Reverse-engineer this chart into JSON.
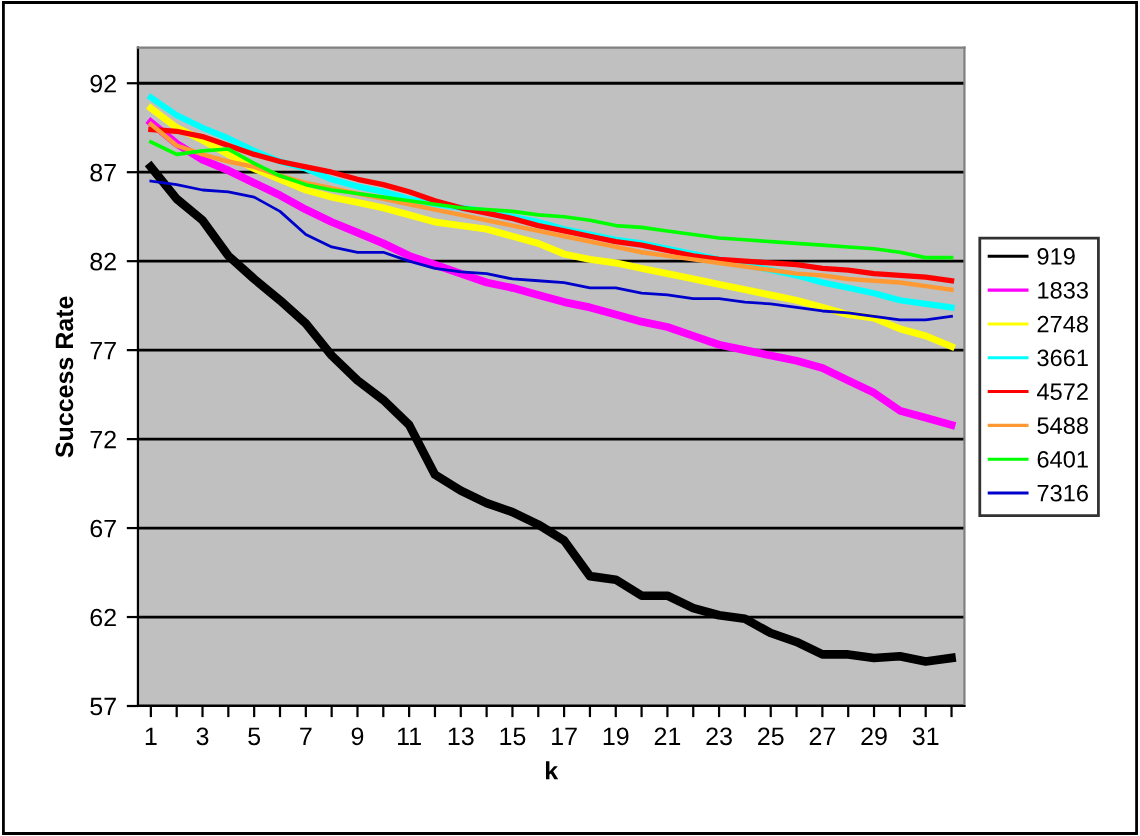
{
  "chart_data": {
    "type": "line",
    "xlabel": "k",
    "ylabel": "Success Rate",
    "categories": [
      "1",
      null,
      "3",
      null,
      "5",
      null,
      "7",
      null,
      "9",
      null,
      "11",
      null,
      "13",
      null,
      "15",
      null,
      "17",
      null,
      "19",
      null,
      "21",
      null,
      "23",
      null,
      "25",
      null,
      "27",
      null,
      "29",
      null,
      "31",
      null
    ],
    "series": [
      {
        "name": "919",
        "color": "#000000",
        "values": [
          87.3,
          85.5,
          84.3,
          82.3,
          81,
          79.8,
          78.5,
          76.7,
          75.3,
          74.2,
          72.8,
          70,
          69.1,
          68.4,
          67.9,
          67.2,
          66.3,
          64.3,
          64.1,
          63.2,
          63.2,
          62.5,
          62.1,
          61.9,
          61.1,
          60.6,
          59.9,
          59.9,
          59.7,
          59.8,
          59.5,
          59.7
        ]
      },
      {
        "name": "1833",
        "color": "#ff00ff",
        "values": [
          89.8,
          88.6,
          87.7,
          87.1,
          86.4,
          85.7,
          84.9,
          84.2,
          83.6,
          83,
          82.3,
          81.8,
          81.3,
          80.8,
          80.5,
          80.1,
          79.7,
          79.4,
          79,
          78.6,
          78.3,
          77.8,
          77.3,
          77,
          76.7,
          76.4,
          76,
          75.3,
          74.6,
          73.6,
          73.2,
          72.8
        ]
      },
      {
        "name": "2748",
        "color": "#ffff00",
        "values": [
          90.6,
          89.5,
          88.8,
          88,
          87.2,
          86.6,
          86,
          85.6,
          85.3,
          85,
          84.6,
          84.2,
          84,
          83.8,
          83.4,
          83,
          82.4,
          82.1,
          81.9,
          81.6,
          81.3,
          81,
          80.7,
          80.4,
          80.1,
          79.8,
          79.4,
          79,
          78.8,
          78.2,
          77.8,
          77.2
        ]
      },
      {
        "name": "3661",
        "color": "#00ffff",
        "values": [
          91.2,
          90.2,
          89.5,
          88.9,
          88.2,
          87.6,
          87.2,
          86.6,
          86.2,
          85.9,
          85.5,
          85.2,
          85,
          84.8,
          84.5,
          84.2,
          83.8,
          83.5,
          83.2,
          83,
          82.7,
          82.4,
          82.1,
          81.8,
          81.5,
          81.2,
          80.8,
          80.5,
          80.2,
          79.8,
          79.6,
          79.4
        ]
      },
      {
        "name": "4572",
        "color": "#ff0000",
        "values": [
          89.4,
          89.3,
          89,
          88.5,
          88,
          87.6,
          87.3,
          87,
          86.6,
          86.3,
          85.9,
          85.4,
          85,
          84.7,
          84.4,
          84,
          83.7,
          83.4,
          83.1,
          82.9,
          82.6,
          82.3,
          82.1,
          82,
          81.9,
          81.8,
          81.6,
          81.5,
          81.3,
          81.2,
          81.1,
          80.9
        ]
      },
      {
        "name": "5488",
        "color": "#ff9933",
        "values": [
          89.7,
          88.5,
          88,
          87.6,
          87.3,
          86.8,
          86.4,
          86.1,
          85.8,
          85.5,
          85.2,
          84.9,
          84.6,
          84.3,
          84,
          83.7,
          83.4,
          83.1,
          82.8,
          82.5,
          82.3,
          82.1,
          81.9,
          81.7,
          81.5,
          81.3,
          81.2,
          81,
          80.9,
          80.8,
          80.6,
          80.4
        ]
      },
      {
        "name": "6401",
        "color": "#00ff00",
        "values": [
          88.7,
          88,
          88.2,
          88.3,
          87.5,
          86.8,
          86.3,
          86,
          85.8,
          85.6,
          85.4,
          85.2,
          85,
          84.9,
          84.8,
          84.6,
          84.5,
          84.3,
          84,
          83.9,
          83.7,
          83.5,
          83.3,
          83.2,
          83.1,
          83,
          82.9,
          82.8,
          82.7,
          82.5,
          82.2,
          82.2
        ]
      },
      {
        "name": "7316",
        "color": "#0000cc",
        "values": [
          86.5,
          86.3,
          86,
          85.9,
          85.6,
          84.8,
          83.5,
          82.8,
          82.5,
          82.5,
          82,
          81.6,
          81.4,
          81.3,
          81,
          80.9,
          80.8,
          80.5,
          80.5,
          80.2,
          80.1,
          79.9,
          79.9,
          79.7,
          79.6,
          79.4,
          79.2,
          79.1,
          78.9,
          78.7,
          78.7,
          78.9
        ]
      }
    ],
    "ylim": [
      57,
      94
    ],
    "yticks": [
      57,
      62,
      67,
      72,
      77,
      82,
      87,
      92
    ],
    "grid": "y",
    "legend": "right",
    "marker": "none",
    "line_style": "solid"
  }
}
